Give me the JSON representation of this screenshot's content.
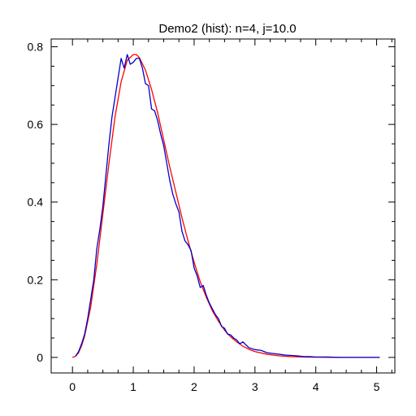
{
  "chart_data": {
    "type": "line",
    "title": "Demo2 (hist): n=4, j=10.0",
    "xlabel": "",
    "ylabel": "",
    "xlim": [
      -0.35,
      5.3
    ],
    "ylim": [
      -0.04,
      0.82
    ],
    "x_ticks": [
      0,
      1,
      2,
      3,
      4,
      5
    ],
    "x_tick_labels": [
      "0",
      "1",
      "2",
      "3",
      "4",
      "5"
    ],
    "y_ticks": [
      0,
      0.2,
      0.4,
      0.6,
      0.8
    ],
    "y_tick_labels": [
      "0",
      "0.2",
      "0.4",
      "0.6",
      "0.8"
    ],
    "grid": false,
    "series": [
      {
        "color": "#ff0000",
        "x": [
          0,
          0.05,
          0.1,
          0.15,
          0.2,
          0.3,
          0.4,
          0.5,
          0.6,
          0.7,
          0.8,
          0.9,
          1.0,
          1.05,
          1.1,
          1.2,
          1.3,
          1.4,
          1.5,
          1.6,
          1.7,
          1.8,
          1.9,
          2.0,
          2.1,
          2.2,
          2.3,
          2.4,
          2.5,
          2.6,
          2.7,
          2.8,
          2.9,
          3.0,
          3.2,
          3.4,
          3.6,
          3.8,
          4.0,
          4.3,
          4.6,
          5.05
        ],
        "y": [
          0.0,
          0.003,
          0.012,
          0.03,
          0.055,
          0.13,
          0.24,
          0.37,
          0.5,
          0.62,
          0.71,
          0.765,
          0.78,
          0.78,
          0.772,
          0.74,
          0.69,
          0.63,
          0.56,
          0.49,
          0.425,
          0.36,
          0.3,
          0.245,
          0.195,
          0.155,
          0.12,
          0.093,
          0.07,
          0.053,
          0.04,
          0.029,
          0.021,
          0.015,
          0.008,
          0.004,
          0.002,
          0.001,
          0.0005,
          0.0002,
          0.0001,
          0.0
        ]
      },
      {
        "color": "#0000cc",
        "x": [
          0.05,
          0.1,
          0.15,
          0.2,
          0.25,
          0.3,
          0.35,
          0.4,
          0.45,
          0.5,
          0.55,
          0.6,
          0.65,
          0.7,
          0.75,
          0.8,
          0.85,
          0.9,
          0.95,
          1.0,
          1.05,
          1.1,
          1.15,
          1.2,
          1.25,
          1.3,
          1.35,
          1.4,
          1.45,
          1.5,
          1.55,
          1.6,
          1.65,
          1.7,
          1.75,
          1.8,
          1.85,
          1.9,
          1.95,
          2.0,
          2.05,
          2.1,
          2.15,
          2.2,
          2.25,
          2.3,
          2.35,
          2.4,
          2.45,
          2.5,
          2.55,
          2.6,
          2.65,
          2.7,
          2.75,
          2.8,
          2.9,
          3.0,
          3.1,
          3.2,
          3.3,
          3.4,
          3.5,
          3.6,
          3.7,
          3.8,
          3.9,
          4.0,
          4.2,
          4.4,
          4.6,
          4.8,
          5.05
        ],
        "y": [
          0.003,
          0.015,
          0.035,
          0.06,
          0.1,
          0.15,
          0.2,
          0.28,
          0.33,
          0.39,
          0.47,
          0.55,
          0.62,
          0.67,
          0.72,
          0.77,
          0.745,
          0.78,
          0.755,
          0.76,
          0.77,
          0.77,
          0.745,
          0.705,
          0.7,
          0.64,
          0.635,
          0.61,
          0.575,
          0.545,
          0.5,
          0.455,
          0.42,
          0.395,
          0.375,
          0.325,
          0.3,
          0.29,
          0.275,
          0.23,
          0.21,
          0.18,
          0.185,
          0.16,
          0.14,
          0.125,
          0.11,
          0.1,
          0.08,
          0.075,
          0.06,
          0.058,
          0.05,
          0.045,
          0.035,
          0.04,
          0.025,
          0.02,
          0.018,
          0.012,
          0.01,
          0.008,
          0.006,
          0.005,
          0.004,
          0.002,
          0.002,
          0.001,
          0.001,
          0.0,
          0.0,
          0.0,
          0.0
        ]
      }
    ]
  }
}
